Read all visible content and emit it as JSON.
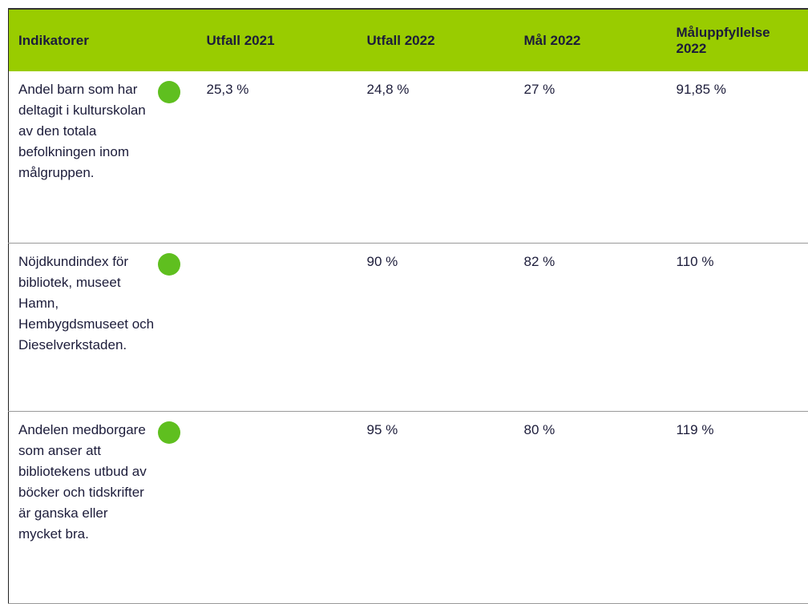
{
  "table": {
    "header": {
      "indicator": "Indikatorer",
      "utfall_2021": "Utfall 2021",
      "utfall_2022": "Utfall 2022",
      "mal_2022": "Mål 2022",
      "maluppfyllelse": "Måluppfyllelse 2022"
    },
    "rows": [
      {
        "indicator": "Andel barn som har deltagit i kulturskolan av den totala befolkningen inom målgruppen.",
        "utfall_2021": "25,3 %",
        "utfall_2022": "24,8 %",
        "mal_2022": "27 %",
        "maluppfyllelse": "91,85 %"
      },
      {
        "indicator": "Nöjdkundindex för bibliotek, museet Hamn, Hembygdsmuseet och Dieselverkstaden.",
        "utfall_2022": "90 %",
        "mal_2022": "82 %",
        "maluppfyllelse": "110 %"
      },
      {
        "indicator": "Andelen medborgare som anser att bibliotekens utbud av böcker och tidskrifter är ganska eller mycket bra.",
        "utfall_2022": "95 %",
        "mal_2022": "80 %",
        "maluppfyllelse": "119 %"
      }
    ]
  }
}
